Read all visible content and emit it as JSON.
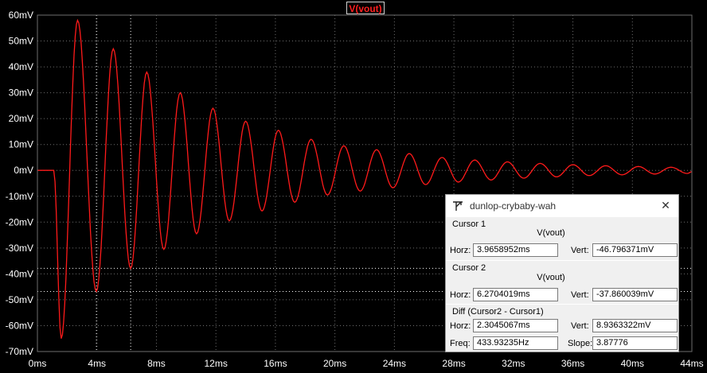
{
  "plot": {
    "title": "V(vout)",
    "trace_color": "#ff1a1a",
    "grid_color": "#6e6e6e",
    "background": "#000000"
  },
  "chart_data": {
    "type": "line",
    "title": "V(vout)",
    "xlabel": "",
    "ylabel": "",
    "xlim_ms": [
      0,
      44
    ],
    "ylim_mV": [
      -70,
      60
    ],
    "x_ticks": [
      "0ms",
      "4ms",
      "8ms",
      "12ms",
      "16ms",
      "20ms",
      "24ms",
      "28ms",
      "32ms",
      "36ms",
      "40ms",
      "44ms"
    ],
    "y_ticks": [
      "60mV",
      "50mV",
      "40mV",
      "30mV",
      "20mV",
      "10mV",
      "0mV",
      "-10mV",
      "-20mV",
      "-30mV",
      "-40mV",
      "-50mV",
      "-60mV",
      "-70mV"
    ],
    "grid": true,
    "series": [
      {
        "name": "V(vout)",
        "x_ms": [
          0,
          1.1,
          1.6,
          2.7,
          3.96,
          5.1,
          6.27,
          7.35,
          8.5,
          9.6,
          10.7,
          11.8,
          12.9,
          14.0,
          15.1,
          16.2,
          17.3,
          18.4,
          19.5,
          20.6,
          21.7,
          22.8,
          23.9,
          25.0,
          26.1,
          27.2,
          28.3,
          29.4,
          30.5,
          31.6,
          32.7,
          33.8,
          34.9,
          36.0,
          37.1,
          38.2,
          39.3,
          40.4,
          41.5,
          42.6,
          43.7,
          44
        ],
        "y_mV": [
          0,
          0,
          -65,
          58,
          -46.8,
          47,
          -37.9,
          38,
          -30.5,
          30,
          -24.5,
          24,
          -19.5,
          19,
          -15.7,
          15.5,
          -12.3,
          12,
          -9.5,
          9.5,
          -8,
          8,
          -6.7,
          6.5,
          -5.5,
          5,
          -4.5,
          4,
          -3.7,
          3.3,
          -3,
          2.7,
          -2.5,
          2.2,
          -2,
          1.8,
          -1.7,
          1.5,
          -1.4,
          1.2,
          -1.2,
          -0.5
        ]
      }
    ],
    "cursors_ms": [
      3.9658952,
      6.2704019
    ],
    "cursor_levels_mV": [
      -46.796371,
      -37.860039
    ]
  },
  "dialog": {
    "title": "dunlop-crybaby-wah",
    "cursor1": {
      "label": "Cursor 1",
      "trace": "V(vout)",
      "horz_label": "Horz:",
      "horz": "3.9658952ms",
      "vert_label": "Vert:",
      "vert": "-46.796371mV"
    },
    "cursor2": {
      "label": "Cursor 2",
      "trace": "V(vout)",
      "horz_label": "Horz:",
      "horz": "6.2704019ms",
      "vert_label": "Vert:",
      "vert": "-37.860039mV"
    },
    "diff": {
      "label": "Diff (Cursor2 - Cursor1)",
      "horz_label": "Horz:",
      "horz": "2.3045067ms",
      "vert_label": "Vert:",
      "vert": "8.9363322mV",
      "freq_label": "Freq:",
      "freq": "433.93235Hz",
      "slope_label": "Slope:",
      "slope": "3.87776"
    }
  }
}
